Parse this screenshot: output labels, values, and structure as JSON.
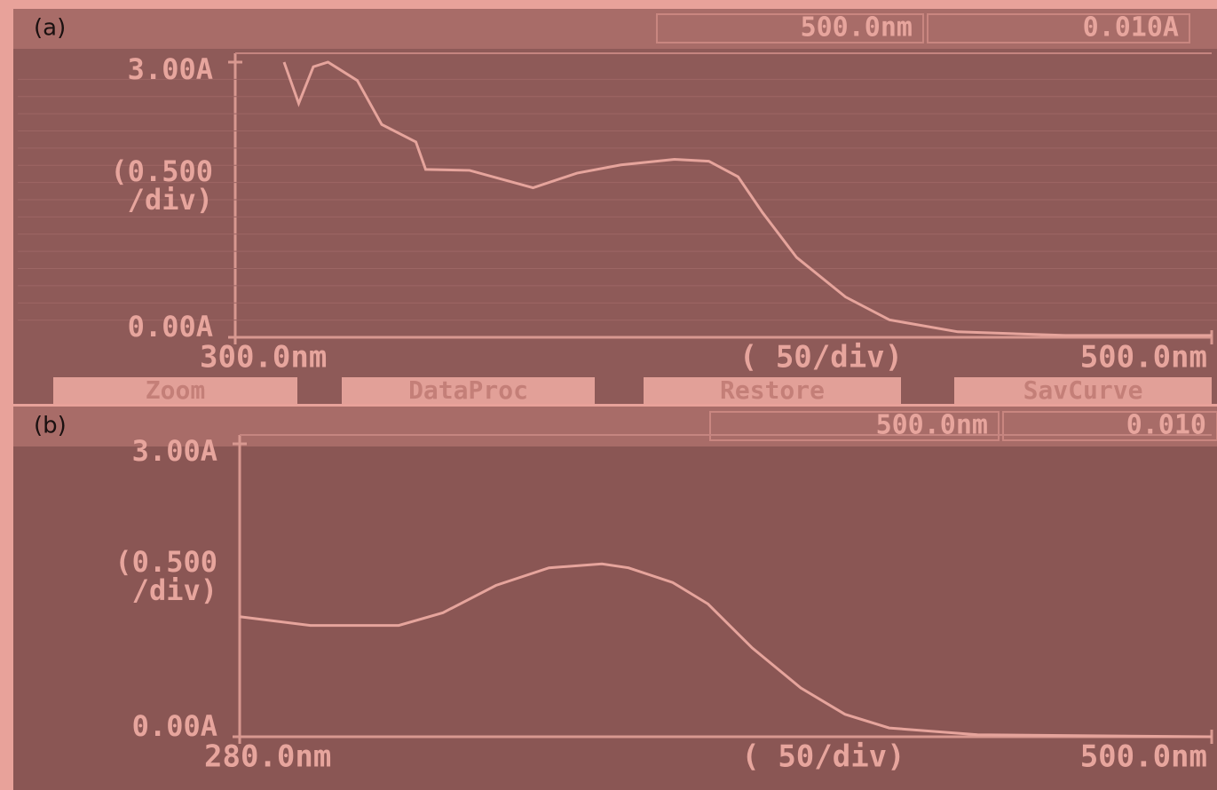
{
  "chart_data": [
    {
      "type": "line",
      "title": "(a)",
      "reading": [
        "500.0nm",
        "0.010A"
      ],
      "buttons": [
        "Zoom",
        "DataProc",
        "Restore",
        "SavCurve"
      ],
      "x_scale_label": "( 50/div)",
      "y_scale_label": [
        "(0.500",
        "/div)"
      ],
      "x": [
        310,
        313,
        316,
        319,
        325,
        330,
        337,
        339,
        348,
        361,
        370,
        379,
        390,
        397,
        403,
        408,
        415,
        425,
        434,
        448,
        470,
        500
      ],
      "series": [
        {
          "color": "#e6a49c",
          "values": [
            3.0,
            2.55,
            2.95,
            3.0,
            2.8,
            2.32,
            2.13,
            1.83,
            1.82,
            1.63,
            1.79,
            1.88,
            1.94,
            1.92,
            1.75,
            1.36,
            0.87,
            0.44,
            0.19,
            0.06,
            0.02,
            0.02
          ]
        }
      ],
      "xlim": [
        300,
        500
      ],
      "xticks": [
        {
          "value": 300,
          "label": "300.0nm"
        },
        {
          "value": 500,
          "label": "500.0nm"
        }
      ],
      "ylim": [
        0,
        3
      ],
      "yticks": [
        {
          "value": 0,
          "label": "0.00A"
        },
        {
          "value": 3,
          "label": "3.00A"
        }
      ],
      "grid": true
    },
    {
      "type": "line",
      "title": "(b)",
      "reading": [
        "500.0nm",
        "0.010"
      ],
      "x_scale_label": "( 50/div)",
      "y_scale_label": [
        "(0.500",
        "/div)"
      ],
      "x": [
        280,
        296,
        316,
        326,
        338,
        350,
        362,
        368,
        378,
        386,
        396,
        407,
        417,
        427,
        447,
        500
      ],
      "series": [
        {
          "color": "#e6a49c",
          "values": [
            1.23,
            1.14,
            1.14,
            1.27,
            1.55,
            1.73,
            1.77,
            1.73,
            1.58,
            1.36,
            0.91,
            0.5,
            0.23,
            0.09,
            0.02,
            0.0
          ]
        }
      ],
      "xlim": [
        280,
        500
      ],
      "xticks": [
        {
          "value": 280,
          "label": "280.0nm"
        },
        {
          "value": 500,
          "label": "500.0nm"
        }
      ],
      "ylim": [
        0,
        3
      ],
      "yticks": [
        {
          "value": 0,
          "label": "0.00A"
        },
        {
          "value": 3,
          "label": "3.00A"
        }
      ],
      "grid": false
    }
  ]
}
